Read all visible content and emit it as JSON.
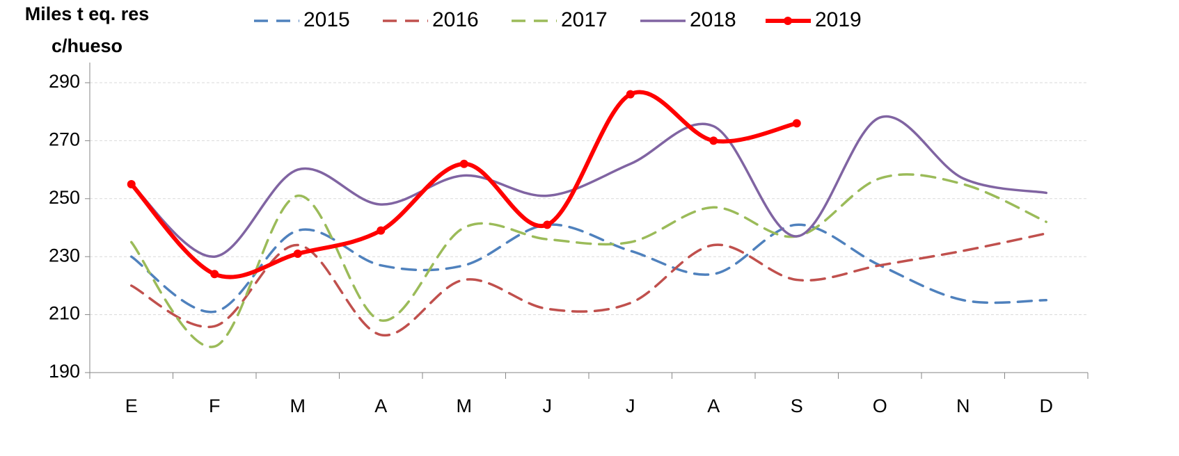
{
  "chart_data": {
    "type": "line",
    "y_label": [
      "Miles t eq. res",
      "c/hueso"
    ],
    "categories": [
      "E",
      "F",
      "M",
      "A",
      "M",
      "J",
      "J",
      "A",
      "S",
      "O",
      "N",
      "D"
    ],
    "series": [
      {
        "name": "2015",
        "color": "#4f81bd",
        "dashed": true,
        "markers": false,
        "values": [
          230,
          211,
          239,
          227,
          227,
          241,
          232,
          224,
          241,
          227,
          215,
          215
        ]
      },
      {
        "name": "2016",
        "color": "#c0504d",
        "dashed": true,
        "markers": false,
        "values": [
          220,
          206,
          234,
          203,
          222,
          212,
          214,
          234,
          222,
          227,
          232,
          238
        ]
      },
      {
        "name": "2017",
        "color": "#9bbb59",
        "dashed": true,
        "markers": false,
        "values": [
          235,
          199,
          251,
          208,
          240,
          236,
          235,
          247,
          237,
          257,
          255,
          242
        ]
      },
      {
        "name": "2018",
        "color": "#8064a2",
        "dashed": false,
        "markers": false,
        "values": [
          255,
          230,
          260,
          248,
          258,
          251,
          262,
          275,
          237,
          278,
          257,
          252
        ]
      },
      {
        "name": "2019",
        "color": "#ff0000",
        "dashed": false,
        "markers": true,
        "values": [
          255,
          224,
          231,
          239,
          262,
          241,
          286,
          270,
          276,
          null,
          null,
          null
        ]
      }
    ],
    "ylim": [
      190,
      290
    ],
    "yticks": [
      190,
      210,
      230,
      250,
      270,
      290
    ],
    "grid": true,
    "legend": "top"
  }
}
